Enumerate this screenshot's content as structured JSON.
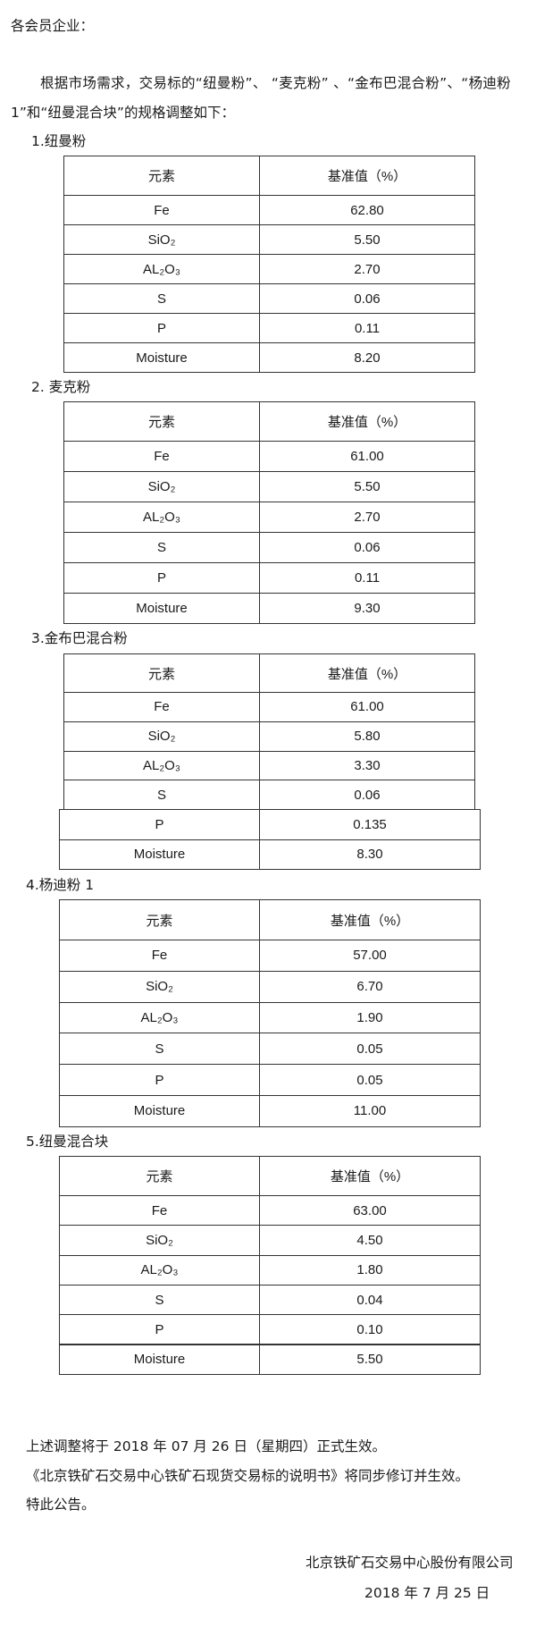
{
  "salutation": "各会员企业：",
  "intro": {
    "line1": "根据市场需求，交易标的“纽曼粉”、 “麦克粉” 、“金布巴混合粉”、“杨迪粉",
    "line2": "1”和“纽曼混合块”的规格调整如下："
  },
  "table_header": {
    "element": "元素",
    "value": "基准值（%）"
  },
  "sections": [
    {
      "title": "1.纽曼粉",
      "rows": [
        [
          "Fe",
          "62.80"
        ],
        [
          "SiO₂",
          "5.50"
        ],
        [
          "AL₂O₃",
          "2.70"
        ],
        [
          "S",
          "0.06"
        ],
        [
          "P",
          "0.11"
        ],
        [
          "Moisture",
          "8.20"
        ]
      ]
    },
    {
      "title": "2. 麦克粉",
      "rows": [
        [
          "Fe",
          "61.00"
        ],
        [
          "SiO₂",
          "5.50"
        ],
        [
          "AL₂O₃",
          "2.70"
        ],
        [
          "S",
          "0.06"
        ],
        [
          "P",
          "0.11"
        ],
        [
          "Moisture",
          "9.30"
        ]
      ]
    },
    {
      "title": "3.金布巴混合粉",
      "rows": [
        [
          "Fe",
          "61.00"
        ],
        [
          "SiO₂",
          "5.80"
        ],
        [
          "AL₂O₃",
          "3.30"
        ],
        [
          "S",
          "0.06"
        ],
        [
          "P",
          "0.135"
        ],
        [
          "Moisture",
          "8.30"
        ]
      ]
    },
    {
      "title": "4.杨迪粉 1",
      "rows": [
        [
          "Fe",
          "57.00"
        ],
        [
          "SiO₂",
          "6.70"
        ],
        [
          "AL₂O₃",
          "1.90"
        ],
        [
          "S",
          "0.05"
        ],
        [
          "P",
          "0.05"
        ],
        [
          "Moisture",
          "11.00"
        ]
      ]
    },
    {
      "title": "5.纽曼混合块",
      "rows": [
        [
          "Fe",
          "63.00"
        ],
        [
          "SiO₂",
          "4.50"
        ],
        [
          "AL₂O₃",
          "1.80"
        ],
        [
          "S",
          "0.04"
        ],
        [
          "P",
          "0.10"
        ],
        [
          "Moisture",
          "5.50"
        ]
      ]
    }
  ],
  "closing": {
    "line1": "上述调整将于 2018 年 07 月 26 日（星期四）正式生效。",
    "line2": "《北京铁矿石交易中心铁矿石现货交易标的说明书》将同步修订并生效。",
    "line3": "特此公告。"
  },
  "signature": {
    "company": "北京铁矿石交易中心股份有限公司",
    "date": "2018 年 7 月 25 日"
  }
}
